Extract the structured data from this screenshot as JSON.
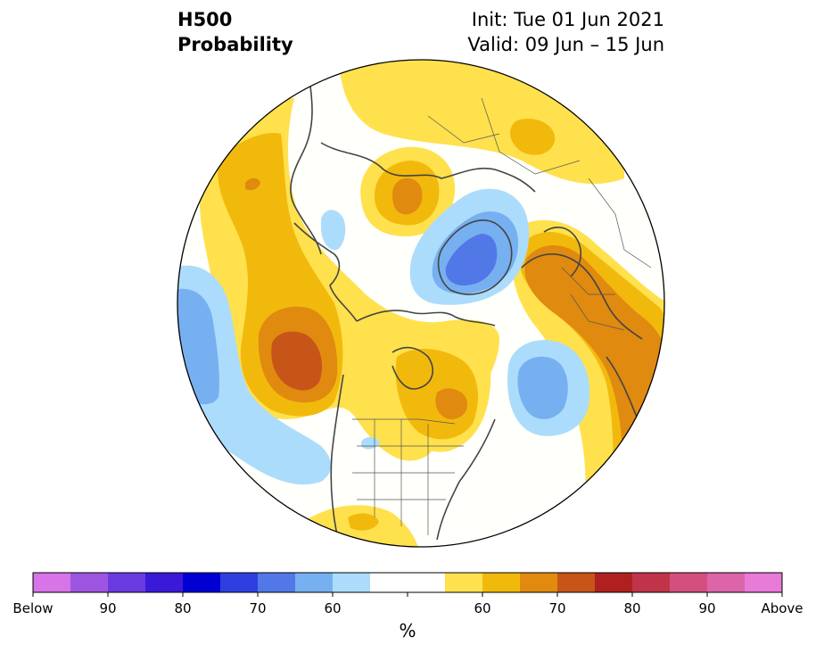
{
  "header": {
    "variable": "H500",
    "product": "Probability",
    "init": "Init: Tue 01 Jun 2021",
    "valid": "Valid: 09 Jun – 15 Jun"
  },
  "map": {
    "projection": "north-polar-stereographic",
    "region": "Northern Hemisphere",
    "background_color": "#fffffb"
  },
  "colorbar": {
    "unit": "%",
    "colors": [
      "#d674e8",
      "#9e56e0",
      "#6a3be0",
      "#3a1ad8",
      "#0000d4",
      "#2d3fe0",
      "#5278e8",
      "#77b0f0",
      "#acdcfb",
      "#ffffff",
      "#ffffff",
      "#ffe14d",
      "#f2b90d",
      "#e08a10",
      "#c75518",
      "#b02020",
      "#c0344a",
      "#d24f7e",
      "#dc65aa",
      "#e87ad8"
    ],
    "tick_labels": [
      "Below",
      "90",
      "80",
      "70",
      "60",
      "60",
      "70",
      "80",
      "90",
      "Above"
    ]
  }
}
